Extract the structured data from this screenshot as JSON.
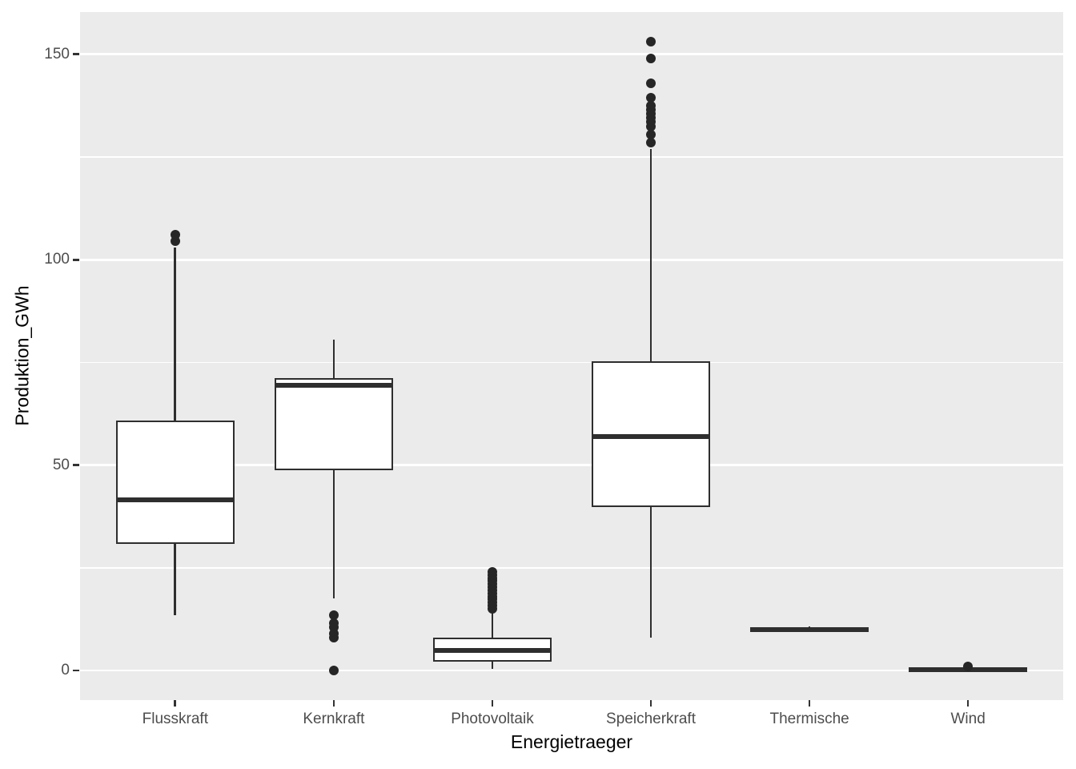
{
  "figure": {
    "kind": "ggplot-style boxplot",
    "background": "#FFFFFF"
  },
  "chart_data": {
    "type": "boxplot",
    "title": "",
    "xlabel": "Energietraeger",
    "ylabel": "Produktion_GWh",
    "unit": "GWh",
    "grid": true,
    "legend_position": "none",
    "categories": [
      "Flusskraft",
      "Kernkraft",
      "Photovoltaik",
      "Speicherkraft",
      "Thermische",
      "Wind"
    ],
    "y_axis": {
      "ticks": [
        0,
        50,
        100,
        150
      ],
      "tick_labels": [
        "0",
        "50",
        "100",
        "150"
      ],
      "minor_gridlines": [
        25,
        75,
        125
      ],
      "range": [
        -7.2,
        160.3
      ]
    },
    "series": [
      {
        "name": "Flusskraft",
        "whisker_low": 13.5,
        "q1": 31,
        "median": 41.5,
        "q3": 60.5,
        "whisker_high": 103,
        "outliers": [
          104.5,
          106
        ]
      },
      {
        "name": "Kernkraft",
        "whisker_low": 17.5,
        "q1": 49,
        "median": 69.5,
        "q3": 71,
        "whisker_high": 80.5,
        "outliers": [
          0,
          8,
          9,
          10.5,
          11.5,
          13.5
        ]
      },
      {
        "name": "Photovoltaik",
        "whisker_low": 0.5,
        "q1": 2.5,
        "median": 4.8,
        "q3": 7.8,
        "whisker_high": 14.5,
        "outliers": [
          15,
          15.8,
          16.5,
          17.3,
          18,
          18.8,
          19.5,
          20.3,
          21,
          21.8,
          22.5,
          23.3,
          24
        ]
      },
      {
        "name": "Speicherkraft",
        "whisker_low": 8,
        "q1": 40,
        "median": 57,
        "q3": 75,
        "whisker_high": 127,
        "outliers": [
          128.5,
          130.5,
          132.5,
          133.5,
          134.5,
          135.5,
          136.5,
          137.5,
          139.5,
          143,
          149,
          153
        ]
      },
      {
        "name": "Thermische",
        "whisker_low": 9.6,
        "q1": 9.7,
        "median": 10,
        "q3": 10.3,
        "whisker_high": 10.7,
        "outliers": []
      },
      {
        "name": "Wind",
        "whisker_low": 0,
        "q1": 0.1,
        "median": 0.3,
        "q3": 0.5,
        "whisker_high": 0.7,
        "outliers": [
          1
        ]
      }
    ]
  },
  "style": {
    "panel_background": "#EBEBEB",
    "gridline_color": "#FFFFFF",
    "box_stroke": "#2E2E2E",
    "box_fill": "#FFFFFF",
    "outlier_color": "#262626",
    "tick_mark_color": "#333333",
    "tick_label_color": "#4D4D4D",
    "axis_title_color": "#000000"
  }
}
